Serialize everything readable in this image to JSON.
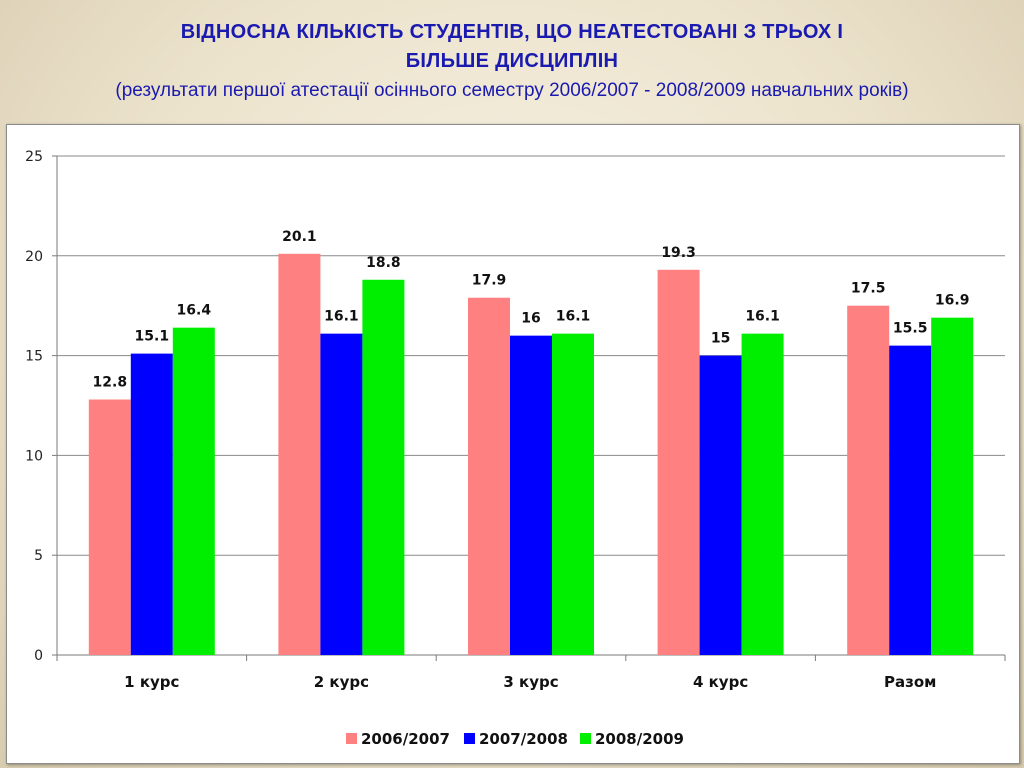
{
  "title": {
    "line1": "ВІДНОСНА  КІЛЬКІСТЬ  СТУДЕНТІВ, ЩО  НЕАТЕСТОВАНІ  З  ТРЬОХ  І",
    "line2": "БІЛЬШЕ ДИСЦИПЛІН",
    "subtitle": "(результати першої атестації осіннього семестру 2006/2007 - 2008/2009 навчальних років)"
  },
  "chart_data": {
    "type": "bar",
    "categories": [
      "1 курс",
      "2 курс",
      "3 курс",
      "4 курс",
      "Разом"
    ],
    "series": [
      {
        "name": "2006/2007",
        "color": "#ff8080",
        "values": [
          12.8,
          20.1,
          17.9,
          19.3,
          17.5
        ],
        "labels": [
          "12.8",
          "20.1",
          "17.9",
          "19.3",
          "17.5"
        ]
      },
      {
        "name": "2007/2008",
        "color": "#0000ff",
        "values": [
          15.1,
          16.1,
          16,
          15,
          15.5
        ],
        "labels": [
          "15.1",
          "16.1",
          "16",
          "15",
          "15.5"
        ]
      },
      {
        "name": "2008/2009",
        "color": "#00ee00",
        "values": [
          16.4,
          18.8,
          16.1,
          16.1,
          16.9
        ],
        "labels": [
          "16.4",
          "18.8",
          "16.1",
          "16.1",
          "16.9"
        ]
      }
    ],
    "ylim": [
      0,
      25
    ],
    "yticks": [
      "0",
      "5",
      "10",
      "15",
      "20",
      "25"
    ],
    "grid": true,
    "legend": "bottom"
  }
}
